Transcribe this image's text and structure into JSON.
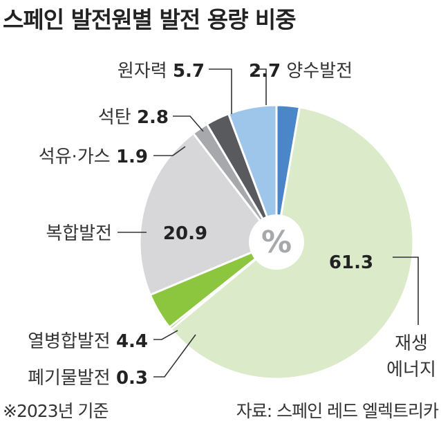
{
  "title": "스페인 발전원별 발전 용량 비중",
  "footnote": "※2023년 기준",
  "source": "자료: 스페인 레드 엘렉트리카",
  "center_symbol": "%",
  "chart_data": {
    "type": "pie",
    "title": "스페인 발전원별 발전 용량 비중",
    "unit": "%",
    "slices": [
      {
        "name": "양수발전",
        "value": 2.7,
        "color": "#4a86c8"
      },
      {
        "name": "재생에너지",
        "value": 61.3,
        "color": "#dbeac9"
      },
      {
        "name": "폐기물발전",
        "value": 0.3,
        "color": "#6fa33a"
      },
      {
        "name": "열병합발전",
        "value": 4.4,
        "color": "#8cc63f"
      },
      {
        "name": "복합발전",
        "value": 20.9,
        "color": "#d7d7d9"
      },
      {
        "name": "석유·가스",
        "value": 1.9,
        "color": "#a7a8ab"
      },
      {
        "name": "석탄",
        "value": 2.8,
        "color": "#595a5e"
      },
      {
        "name": "원자력",
        "value": 5.7,
        "color": "#9ec5ea"
      }
    ],
    "value_labels": {
      "양수발전": "2.7",
      "재생에너지": "61.3",
      "폐기물발전": "0.3",
      "열병합발전": "4.4",
      "복합발전": "20.9",
      "석유·가스": "1.9",
      "석탄": "2.8",
      "원자력": "5.7"
    },
    "display_names": {
      "재생에너지": [
        "재생",
        "에너지"
      ]
    }
  }
}
